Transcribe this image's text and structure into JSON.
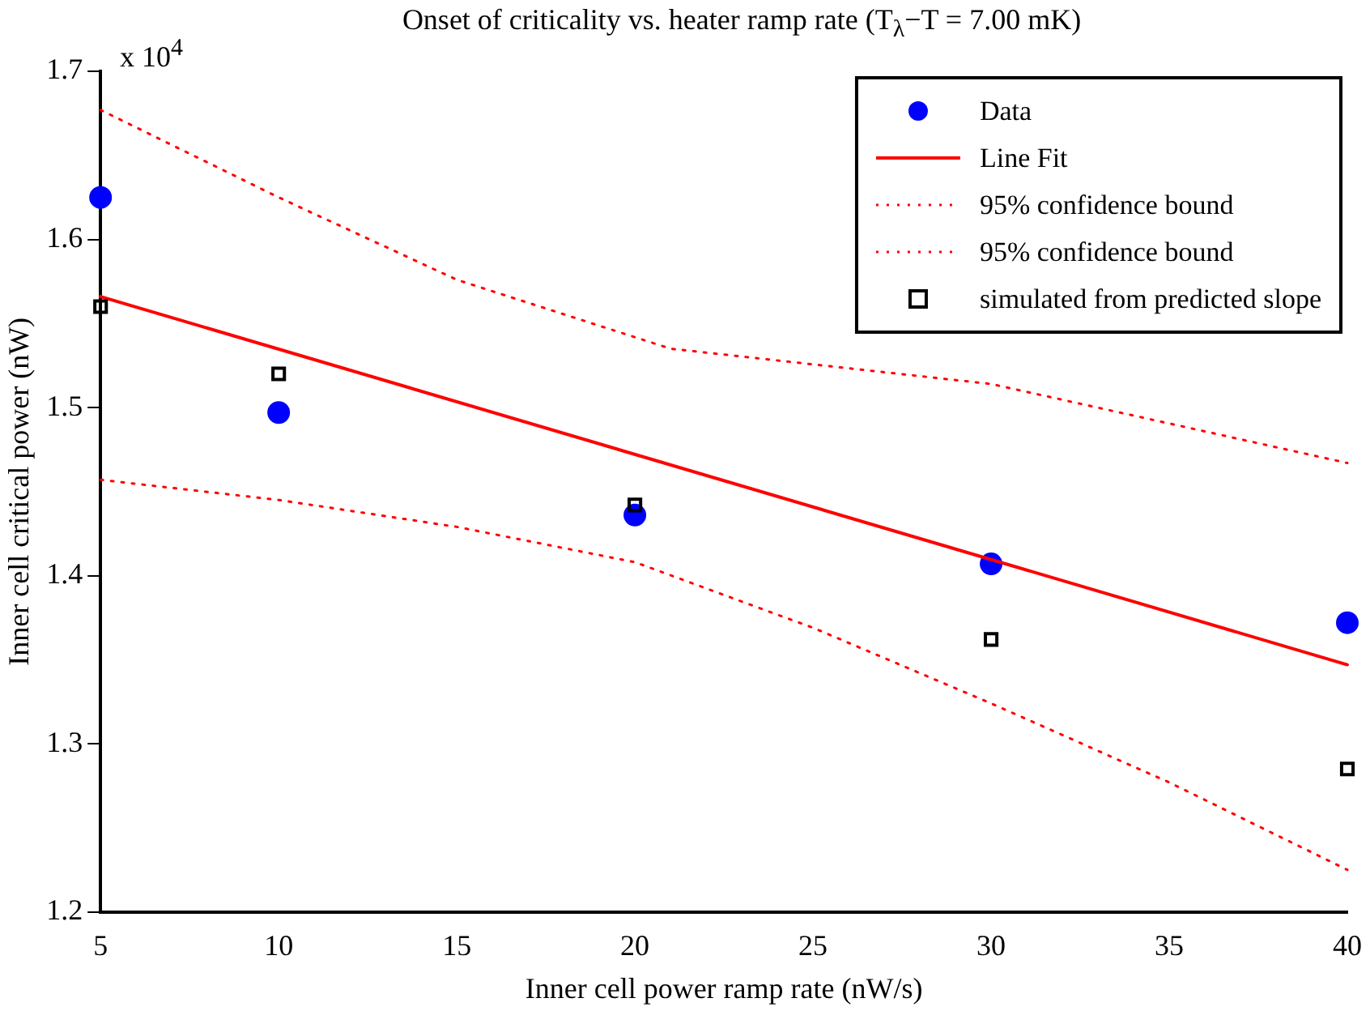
{
  "chart_data": {
    "type": "scatter",
    "title": "Onset of criticality vs. heater ramp rate (T$_{λ}$−T = 7.00 mK)",
    "xlabel": "Inner cell power ramp rate (nW/s)",
    "ylabel": "Inner cell critical power (nW)",
    "annotations": [
      "x 10$^{4}$"
    ],
    "x": [
      5,
      10,
      20,
      30,
      40
    ],
    "series": [
      {
        "name": "Data",
        "marker": "circle",
        "color": "#0000ff",
        "values": [
          1.625,
          1.497,
          1.436,
          1.407,
          1.372
        ]
      },
      {
        "name": "Line Fit",
        "type": "line",
        "marker": "none",
        "line_style": "solid",
        "color": "#ff0000",
        "x": [
          5,
          40
        ],
        "values": [
          1.566,
          1.347
        ]
      },
      {
        "name": "95% confidence bound",
        "type": "line",
        "marker": "none",
        "line_style": "dotted",
        "color": "#ff0000",
        "x": [
          5,
          10,
          15,
          21,
          30,
          40
        ],
        "values": [
          1.677,
          1.625,
          1.576,
          1.535,
          1.514,
          1.467
        ]
      },
      {
        "name": "95% confidence bound",
        "type": "line",
        "marker": "none",
        "line_style": "dotted",
        "color": "#ff0000",
        "x": [
          5,
          10,
          15,
          20,
          25,
          30,
          35,
          40
        ],
        "values": [
          1.457,
          1.445,
          1.429,
          1.408,
          1.369,
          1.324,
          1.277,
          1.225
        ]
      },
      {
        "name": "simulated from predicted slope",
        "marker": "square",
        "color": "#000000",
        "values": [
          1.56,
          1.52,
          1.442,
          1.362,
          1.285
        ]
      }
    ],
    "xlim": [
      5,
      40
    ],
    "xticks": [
      5,
      10,
      15,
      20,
      25,
      30,
      35,
      40
    ],
    "ylim": [
      1.2,
      1.7
    ],
    "yticks": [
      1.2,
      1.3,
      1.4,
      1.5,
      1.6,
      1.7
    ],
    "grid": false,
    "legend": "top right"
  }
}
